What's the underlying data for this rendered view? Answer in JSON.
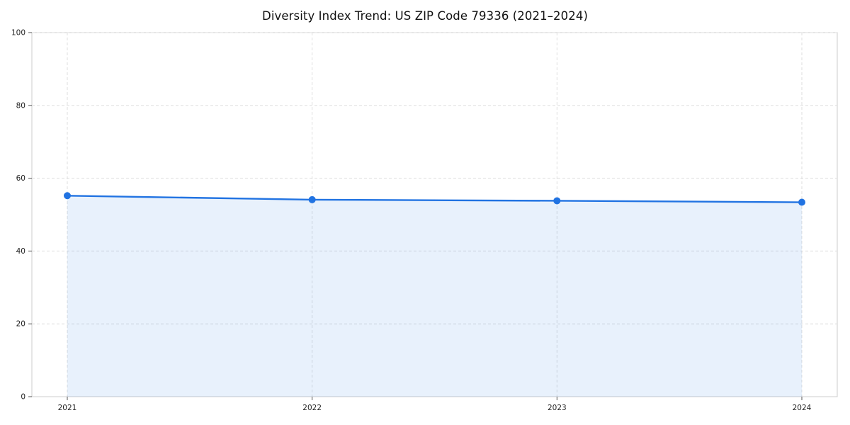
{
  "chart_data": {
    "type": "area",
    "title": "Diversity Index Trend: US ZIP Code 79336 (2021–2024)",
    "xlabel": "",
    "ylabel": "",
    "categories": [
      "2021",
      "2022",
      "2023",
      "2024"
    ],
    "series": [
      {
        "name": "Diversity Index",
        "values": [
          55.2,
          54.1,
          53.8,
          53.4
        ]
      }
    ],
    "ylim": [
      0,
      100
    ],
    "yticks": [
      0,
      20,
      40,
      60,
      80,
      100
    ],
    "grid": "dashed-both-axes",
    "legend": "none",
    "colors": {
      "line": "#2173e2",
      "marker": "#2173e2",
      "area_fill": "rgba(33,115,226,0.10)",
      "grid_line": "#dedede",
      "plot_border": "#cccccc",
      "tick_text": "#222222",
      "tick_mark": "#555555",
      "background": "#ffffff"
    }
  }
}
